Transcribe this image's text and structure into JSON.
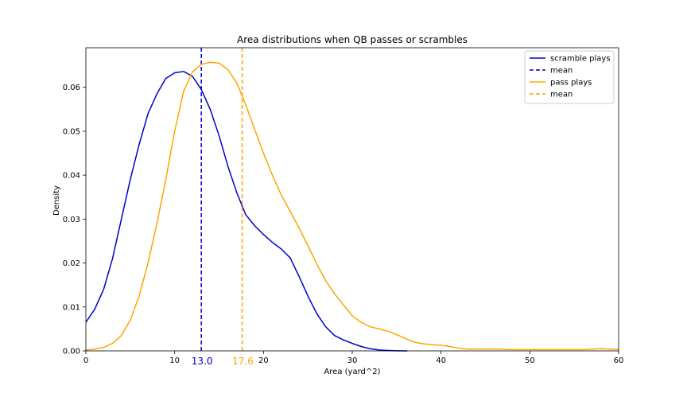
{
  "chart_data": {
    "type": "line",
    "title": "Area distributions when QB passes or scrambles",
    "xlabel": "Area (yard^2)",
    "ylabel": "Density",
    "xlim": [
      0,
      60
    ],
    "ylim": [
      0,
      0.069
    ],
    "xticks": [
      0,
      10,
      20,
      30,
      40,
      50,
      60
    ],
    "yticks": [
      0.0,
      0.01,
      0.02,
      0.03,
      0.04,
      0.05,
      0.06
    ],
    "ytick_labels": [
      "0.00",
      "0.01",
      "0.02",
      "0.03",
      "0.04",
      "0.05",
      "0.06"
    ],
    "grid": false,
    "legend_position": "top-right",
    "series": [
      {
        "name": "scramble plays",
        "color": "#0000cd",
        "style": "solid",
        "points": [
          [
            0,
            0.0065
          ],
          [
            1,
            0.0095
          ],
          [
            2,
            0.014
          ],
          [
            3,
            0.021
          ],
          [
            4,
            0.03
          ],
          [
            5,
            0.039
          ],
          [
            6,
            0.047
          ],
          [
            7,
            0.054
          ],
          [
            8,
            0.0585
          ],
          [
            9,
            0.062
          ],
          [
            10,
            0.0633
          ],
          [
            11,
            0.0636
          ],
          [
            12,
            0.0625
          ],
          [
            13,
            0.0595
          ],
          [
            14,
            0.055
          ],
          [
            15,
            0.049
          ],
          [
            16,
            0.042
          ],
          [
            17,
            0.036
          ],
          [
            18,
            0.031
          ],
          [
            19,
            0.0285
          ],
          [
            20,
            0.0265
          ],
          [
            21,
            0.0247
          ],
          [
            22,
            0.0232
          ],
          [
            23,
            0.0212
          ],
          [
            24,
            0.017
          ],
          [
            25,
            0.0125
          ],
          [
            26,
            0.0085
          ],
          [
            27,
            0.0055
          ],
          [
            28,
            0.0035
          ],
          [
            29,
            0.0025
          ],
          [
            30,
            0.0017
          ],
          [
            31,
            0.001
          ],
          [
            32,
            0.0005
          ],
          [
            33,
            0.0002
          ],
          [
            34,
            0.0001
          ],
          [
            35,
            3e-05
          ],
          [
            36.2,
            0.0
          ]
        ]
      },
      {
        "name": "mean",
        "color": "#0000cd",
        "style": "dashed",
        "value": 13.0,
        "label": "13.0"
      },
      {
        "name": "pass plays",
        "color": "#ffa500",
        "style": "solid",
        "points": [
          [
            0,
            0.0002
          ],
          [
            1,
            0.0004
          ],
          [
            2,
            0.0008
          ],
          [
            3,
            0.0017
          ],
          [
            4,
            0.0035
          ],
          [
            5,
            0.007
          ],
          [
            6,
            0.0125
          ],
          [
            7,
            0.02
          ],
          [
            8,
            0.029
          ],
          [
            9,
            0.039
          ],
          [
            10,
            0.05
          ],
          [
            11,
            0.059
          ],
          [
            12,
            0.0635
          ],
          [
            13,
            0.0652
          ],
          [
            14,
            0.0657
          ],
          [
            15,
            0.0655
          ],
          [
            16,
            0.064
          ],
          [
            17,
            0.061
          ],
          [
            18,
            0.056
          ],
          [
            19,
            0.0505
          ],
          [
            20,
            0.045
          ],
          [
            21,
            0.04
          ],
          [
            22,
            0.0355
          ],
          [
            23,
            0.0318
          ],
          [
            24,
            0.028
          ],
          [
            25,
            0.024
          ],
          [
            26,
            0.0198
          ],
          [
            27,
            0.016
          ],
          [
            28,
            0.013
          ],
          [
            29,
            0.0105
          ],
          [
            30,
            0.008
          ],
          [
            31,
            0.0065
          ],
          [
            32,
            0.0055
          ],
          [
            33,
            0.005
          ],
          [
            34,
            0.0045
          ],
          [
            35,
            0.0037
          ],
          [
            36,
            0.0028
          ],
          [
            37,
            0.002
          ],
          [
            38,
            0.0016
          ],
          [
            39,
            0.0014
          ],
          [
            40,
            0.0013
          ],
          [
            41,
            0.001
          ],
          [
            42,
            0.0006
          ],
          [
            43,
            0.0004
          ],
          [
            46,
            0.0004
          ],
          [
            48,
            0.0003
          ],
          [
            52,
            0.0003
          ],
          [
            56,
            0.0003
          ],
          [
            58,
            0.0005
          ],
          [
            60,
            0.0003
          ]
        ]
      },
      {
        "name": "mean",
        "color": "#ffa500",
        "style": "dashed",
        "value": 17.6,
        "label": "17.6"
      }
    ]
  }
}
